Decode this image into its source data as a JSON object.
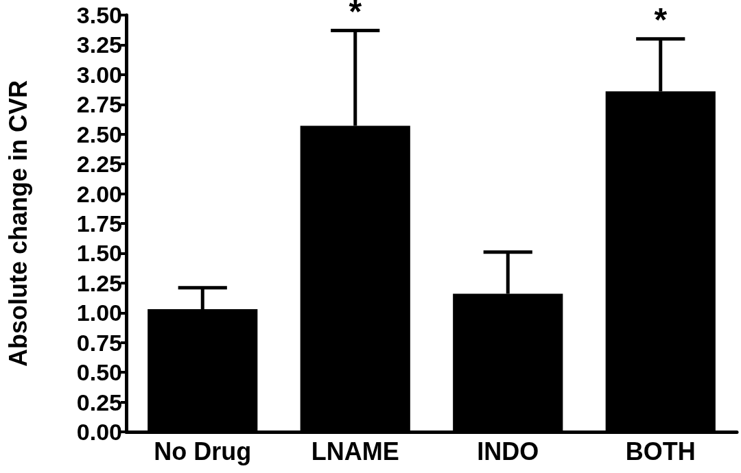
{
  "chart_data": {
    "type": "bar",
    "ylabel": "Absolute change in CVR",
    "categories": [
      "No Drug",
      "LNAME",
      "INDO",
      "BOTH"
    ],
    "values": [
      1.03,
      2.57,
      1.16,
      2.86
    ],
    "errors": [
      [
        1.03,
        1.21
      ],
      [
        2.57,
        3.37
      ],
      [
        1.16,
        1.51
      ],
      [
        2.86,
        3.3
      ]
    ],
    "color": "#000000",
    "ylim": [
      0,
      3.5
    ],
    "yticks": [
      {
        "value": 0,
        "label": "0.00"
      },
      {
        "value": 0.25,
        "label": "0.25"
      },
      {
        "value": 0.5,
        "label": "0.50"
      },
      {
        "value": 0.75,
        "label": "0.75"
      },
      {
        "value": 1,
        "label": "1.00"
      },
      {
        "value": 1.25,
        "label": "1.25"
      },
      {
        "value": 1.5,
        "label": "1.50"
      },
      {
        "value": 1.75,
        "label": "1.75"
      },
      {
        "value": 2,
        "label": "2.00"
      },
      {
        "value": 2.25,
        "label": "2.25"
      },
      {
        "value": 2.5,
        "label": "2.50"
      },
      {
        "value": 2.75,
        "label": "2.75"
      },
      {
        "value": 3,
        "label": "3.00"
      },
      {
        "value": 3.25,
        "label": "3.25"
      },
      {
        "value": 3.5,
        "label": "3.50"
      }
    ],
    "annotations": [
      {
        "text": "*",
        "x": "LNAME",
        "y": 3.37
      },
      {
        "text": "*",
        "x": "BOTH",
        "y": 3.3
      }
    ],
    "grid": false
  }
}
